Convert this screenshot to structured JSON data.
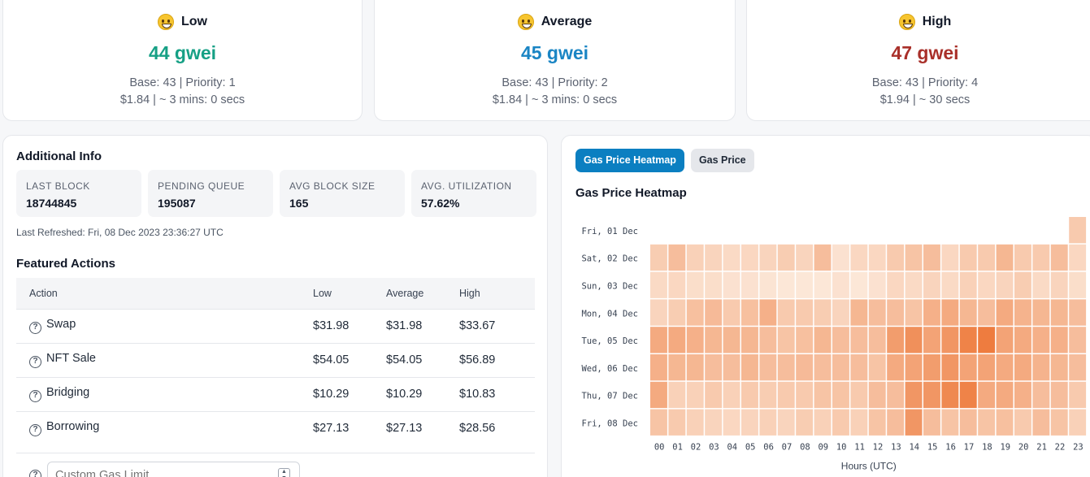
{
  "gas_cards": [
    {
      "label": "Low",
      "value": "44 gwei",
      "base_priority": "Base: 43 | Priority: 1",
      "cost_time": "$1.84 | ~ 3 mins: 0 secs",
      "color": "#16a085",
      "icon": "grinning-face-icon"
    },
    {
      "label": "Average",
      "value": "45 gwei",
      "base_priority": "Base: 43 | Priority: 2",
      "cost_time": "$1.84 | ~ 3 mins: 0 secs",
      "color": "#1a85c4",
      "icon": "smiley-face-icon"
    },
    {
      "label": "High",
      "value": "47 gwei",
      "base_priority": "Base: 43 | Priority: 4",
      "cost_time": "$1.94 | ~ 30 secs",
      "color": "#a9302a",
      "icon": "slight-smile-icon"
    }
  ],
  "info": {
    "title": "Additional Info",
    "stats": [
      {
        "label": "LAST BLOCK",
        "value": "18744845"
      },
      {
        "label": "PENDING QUEUE",
        "value": "195087"
      },
      {
        "label": "AVG BLOCK SIZE",
        "value": "165"
      },
      {
        "label": "AVG. UTILIZATION",
        "value": "57.62%"
      }
    ],
    "last_refreshed": "Last Refreshed: Fri, 08 Dec 2023 23:36:27 UTC"
  },
  "featured": {
    "title": "Featured Actions",
    "headers": [
      "Action",
      "Low",
      "Average",
      "High"
    ],
    "rows": [
      {
        "action": "Swap",
        "low": "$31.98",
        "avg": "$31.98",
        "high": "$33.67"
      },
      {
        "action": "NFT Sale",
        "low": "$54.05",
        "avg": "$54.05",
        "high": "$56.89"
      },
      {
        "action": "Bridging",
        "low": "$10.29",
        "avg": "$10.29",
        "high": "$10.83"
      },
      {
        "action": "Borrowing",
        "low": "$27.13",
        "avg": "$27.13",
        "high": "$28.56"
      }
    ],
    "custom_placeholder": "Custom Gas Limit"
  },
  "heatmap": {
    "tabs": [
      "Gas Price Heatmap",
      "Gas Price"
    ],
    "active_tab": 0,
    "title": "Gas Price Heatmap"
  },
  "chart_data": {
    "type": "heatmap",
    "title": "Gas Price Heatmap",
    "xlabel": "Hours (UTC)",
    "ylabel": "",
    "x": [
      "00",
      "01",
      "02",
      "03",
      "04",
      "05",
      "06",
      "07",
      "08",
      "09",
      "10",
      "11",
      "12",
      "13",
      "14",
      "15",
      "16",
      "17",
      "18",
      "19",
      "20",
      "21",
      "22",
      "23"
    ],
    "y": [
      "Fri, 01 Dec",
      "Sat, 02 Dec",
      "Sun, 03 Dec",
      "Mon, 04 Dec",
      "Tue, 05 Dec",
      "Wed, 06 Dec",
      "Thu, 07 Dec",
      "Fri, 08 Dec"
    ],
    "intensity_scale": [
      0,
      1
    ],
    "color_low": "#fdf1e6",
    "color_high": "#ec6f2c",
    "values": [
      [
        null,
        null,
        null,
        null,
        null,
        null,
        null,
        null,
        null,
        null,
        null,
        null,
        null,
        null,
        null,
        null,
        null,
        null,
        null,
        null,
        null,
        null,
        null,
        0.3
      ],
      [
        0.28,
        0.4,
        0.25,
        0.22,
        0.18,
        0.2,
        0.22,
        0.28,
        0.22,
        0.4,
        0.12,
        0.2,
        0.2,
        0.3,
        0.35,
        0.4,
        0.2,
        0.3,
        0.3,
        0.45,
        0.3,
        0.3,
        0.4,
        0.2
      ],
      [
        0.18,
        0.2,
        0.15,
        0.15,
        0.12,
        0.12,
        0.1,
        0.08,
        0.08,
        0.08,
        0.12,
        0.08,
        0.12,
        0.2,
        0.18,
        0.22,
        0.18,
        0.25,
        0.2,
        0.22,
        0.28,
        0.18,
        0.22,
        0.15
      ],
      [
        0.22,
        0.28,
        0.38,
        0.42,
        0.3,
        0.38,
        0.5,
        0.3,
        0.3,
        0.28,
        0.22,
        0.45,
        0.4,
        0.4,
        0.35,
        0.5,
        0.55,
        0.45,
        0.4,
        0.55,
        0.48,
        0.45,
        0.45,
        0.4
      ],
      [
        0.55,
        0.55,
        0.5,
        0.45,
        0.45,
        0.45,
        0.4,
        0.35,
        0.38,
        0.45,
        0.4,
        0.4,
        0.4,
        0.65,
        0.75,
        0.6,
        0.7,
        0.85,
        0.9,
        0.6,
        0.55,
        0.5,
        0.5,
        0.4
      ],
      [
        0.5,
        0.45,
        0.45,
        0.4,
        0.4,
        0.45,
        0.4,
        0.4,
        0.42,
        0.4,
        0.4,
        0.4,
        0.35,
        0.55,
        0.6,
        0.65,
        0.7,
        0.6,
        0.6,
        0.55,
        0.55,
        0.48,
        0.45,
        0.4
      ],
      [
        0.55,
        0.25,
        0.25,
        0.3,
        0.25,
        0.3,
        0.28,
        0.3,
        0.3,
        0.35,
        0.35,
        0.3,
        0.4,
        0.4,
        0.7,
        0.7,
        0.8,
        0.85,
        0.55,
        0.55,
        0.5,
        0.4,
        0.4,
        0.3
      ],
      [
        0.35,
        0.3,
        0.25,
        0.22,
        0.2,
        0.22,
        0.25,
        0.22,
        0.28,
        0.25,
        0.3,
        0.25,
        0.35,
        0.4,
        0.7,
        0.4,
        0.35,
        0.4,
        0.35,
        0.38,
        0.3,
        0.4,
        0.35,
        0.25
      ]
    ]
  }
}
